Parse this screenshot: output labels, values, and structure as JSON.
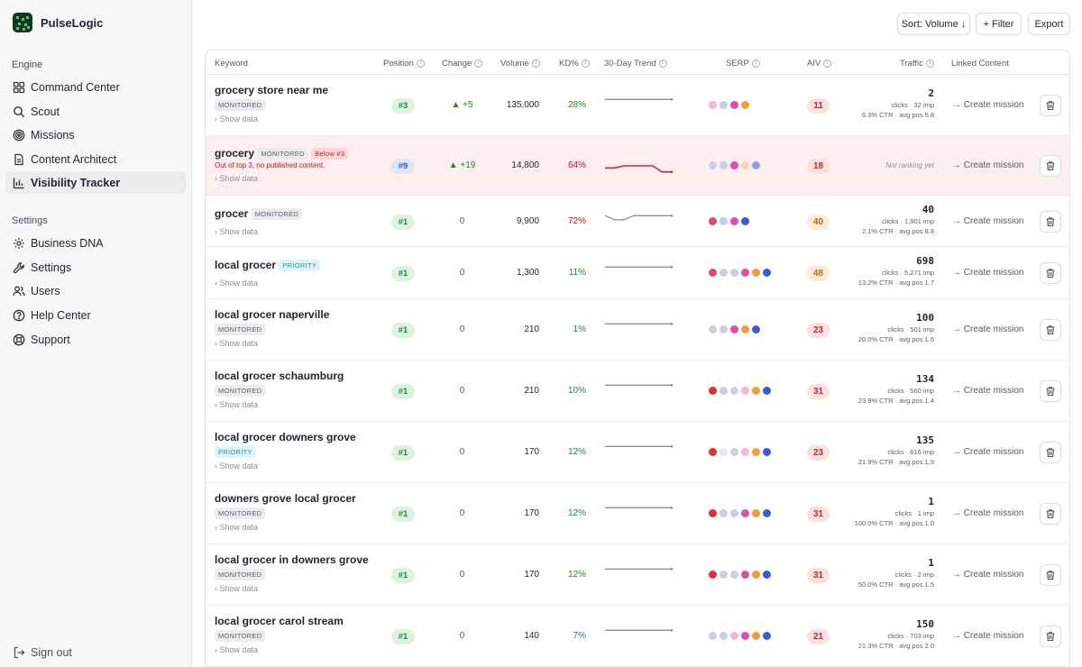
{
  "brand": {
    "name": "PulseLogic"
  },
  "sidebar": {
    "engine_label": "Engine",
    "settings_label": "Settings",
    "engine_items": [
      {
        "label": "Command Center",
        "icon": "grid-icon"
      },
      {
        "label": "Scout",
        "icon": "search-icon"
      },
      {
        "label": "Missions",
        "icon": "target-icon"
      },
      {
        "label": "Content Architect",
        "icon": "document-icon"
      },
      {
        "label": "Visibility Tracker",
        "icon": "chart-icon",
        "active": true
      }
    ],
    "settings_items": [
      {
        "label": "Business DNA",
        "icon": "gear-icon"
      },
      {
        "label": "Settings",
        "icon": "wrench-icon"
      },
      {
        "label": "Users",
        "icon": "users-icon"
      },
      {
        "label": "Help Center",
        "icon": "help-icon"
      },
      {
        "label": "Support",
        "icon": "lifebuoy-icon"
      }
    ],
    "signout_label": "Sign out"
  },
  "toolbar": {
    "sort_label": "Sort: Volume ↓",
    "filter_label": "+ Filter",
    "export_label": "Export"
  },
  "columns": {
    "keyword": "Keyword",
    "position": "Position",
    "change": "Change",
    "volume": "Volume",
    "kd": "KD%",
    "trend": "30-Day Trend",
    "serp": "SERP",
    "aiv": "AIV",
    "traffic": "Traffic",
    "linked": "Linked Content"
  },
  "show_data_label": "› Show data",
  "create_mission_label": "→ Create mission",
  "not_ranking_label": "Not ranking yet",
  "colors": {
    "green": "#1d8a3a",
    "red": "#d0101e",
    "amber": "#b56a10"
  },
  "rows": [
    {
      "keyword": "grocery store near me",
      "badge": "MONITORED",
      "position": "#3",
      "change": "▲ +5",
      "volume": "135,000",
      "kd": "28%",
      "aiv": "11",
      "clicks": "2",
      "sub1": "clicks · 32 imp",
      "sub2": "6.3% CTR · avg pos 5.8",
      "trend": [
        1,
        1,
        1,
        1,
        1,
        1,
        1,
        1
      ]
    },
    {
      "keyword": "grocery",
      "badge": "MONITORED",
      "badge2": "Below #3",
      "alert": "Out of top 3, no published content.",
      "position": "#9",
      "change": "▲ +19",
      "volume": "14,800",
      "kd": "64%",
      "aiv": "18",
      "not_ranking": true,
      "trend": [
        5,
        5,
        4,
        4,
        4,
        4,
        7,
        7
      ]
    },
    {
      "keyword": "grocer",
      "badge": "MONITORED",
      "inline_badge": true,
      "position": "#1",
      "change": "0",
      "volume": "9,900",
      "kd": "72%",
      "aiv": "40",
      "clicks": "40",
      "sub1": "clicks · 1,901 imp",
      "sub2": "2.1% CTR · avg pos 8.8",
      "trend": [
        1,
        3,
        3,
        1,
        1,
        1,
        1,
        1
      ]
    },
    {
      "keyword": "local grocer",
      "badge": "PRIORITY",
      "inline_badge": true,
      "position": "#1",
      "change": "0",
      "volume": "1,300",
      "kd": "11%",
      "aiv": "48",
      "clicks": "698",
      "sub1": "clicks · 5,271 imp",
      "sub2": "13.2% CTR · avg pos 1.7",
      "trend": [
        1,
        1,
        1,
        1,
        1,
        1,
        1,
        1
      ]
    },
    {
      "keyword": "local grocer naperville",
      "badge": "MONITORED",
      "position": "#1",
      "change": "0",
      "volume": "210",
      "kd": "1%",
      "aiv": "23",
      "clicks": "100",
      "sub1": "clicks · 501 imp",
      "sub2": "20.0% CTR · avg pos 1.6",
      "trend": [
        1,
        1,
        1,
        1,
        1,
        1,
        1,
        1
      ]
    },
    {
      "keyword": "local grocer schaumburg",
      "badge": "MONITORED",
      "position": "#1",
      "change": "0",
      "volume": "210",
      "kd": "10%",
      "aiv": "31",
      "clicks": "134",
      "sub1": "clicks · 560 imp",
      "sub2": "23.9% CTR · avg pos 1.4",
      "trend": [
        1,
        1,
        1,
        1,
        1,
        1,
        1,
        1
      ]
    },
    {
      "keyword": "local grocer downers grove",
      "badge": "PRIORITY",
      "position": "#1",
      "change": "0",
      "volume": "170",
      "kd": "12%",
      "aiv": "23",
      "clicks": "135",
      "sub1": "clicks · 616 imp",
      "sub2": "21.9% CTR · avg pos 1.9",
      "trend": [
        1,
        1,
        1,
        1,
        1,
        1,
        1,
        1
      ]
    },
    {
      "keyword": "downers grove local grocer",
      "badge": "MONITORED",
      "position": "#1",
      "change": "0",
      "volume": "170",
      "kd": "12%",
      "aiv": "31",
      "clicks": "1",
      "sub1": "clicks · 1 imp",
      "sub2": "100.0% CTR · avg pos 1.0",
      "trend": [
        1,
        1,
        1,
        1,
        1,
        1,
        1,
        1
      ]
    },
    {
      "keyword": "local grocer in downers grove",
      "badge": "MONITORED",
      "position": "#1",
      "change": "0",
      "volume": "170",
      "kd": "12%",
      "aiv": "31",
      "clicks": "1",
      "sub1": "clicks · 2 imp",
      "sub2": "50.0% CTR · avg pos 1.5",
      "trend": [
        1,
        1,
        1,
        1,
        1,
        1,
        1,
        1
      ]
    },
    {
      "keyword": "local grocer carol stream",
      "badge": "MONITORED",
      "position": "#1",
      "change": "0",
      "volume": "140",
      "kd": "7%",
      "aiv": "21",
      "clicks": "150",
      "sub1": "clicks · 703 imp",
      "sub2": "21.3% CTR · avg pos 2.0",
      "trend": [
        1,
        1,
        1,
        1,
        1,
        1,
        1,
        1
      ]
    }
  ]
}
